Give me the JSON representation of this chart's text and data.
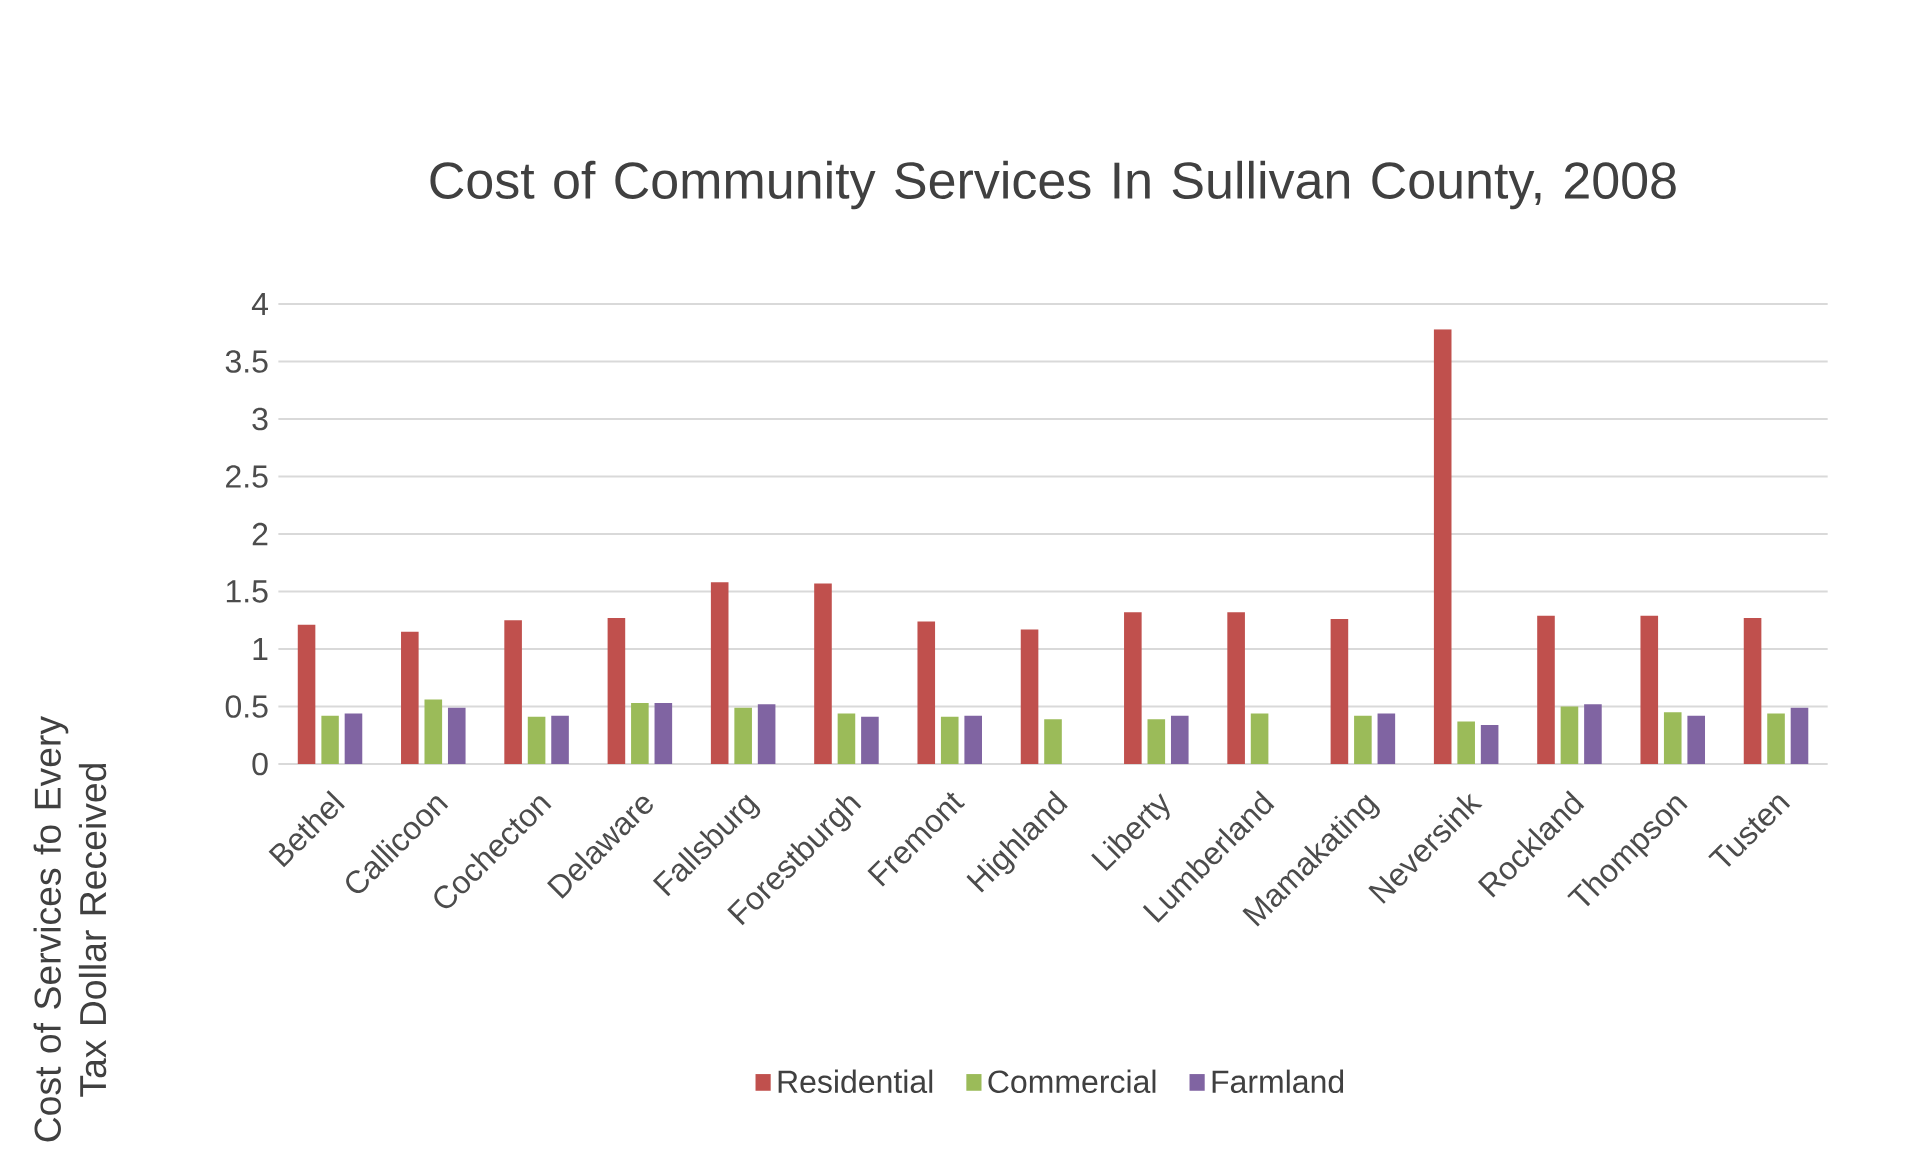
{
  "chart_data": {
    "type": "bar",
    "title": "Cost of Community Services In Sullivan County, 2008",
    "ylabel": "Cost of Services fo Every Tax Dollar Received",
    "categories": [
      "Bethel",
      "Callicoon",
      "Cochecton",
      "Delaware",
      "Fallsburg",
      "Forestburgh",
      "Fremont",
      "Highland",
      "Liberty",
      "Lumberland",
      "Mamakating",
      "Neversink",
      "Rockland",
      "Thompson",
      "Tusten"
    ],
    "series": [
      {
        "name": "Residential",
        "color": "#c0504d",
        "values": [
          1.21,
          1.15,
          1.25,
          1.27,
          1.58,
          1.57,
          1.24,
          1.17,
          1.32,
          1.32,
          1.26,
          3.78,
          1.29,
          1.29,
          1.27
        ]
      },
      {
        "name": "Commercial",
        "color": "#9bbb59",
        "values": [
          0.42,
          0.56,
          0.41,
          0.53,
          0.49,
          0.44,
          0.41,
          0.39,
          0.39,
          0.44,
          0.42,
          0.37,
          0.5,
          0.45,
          0.44
        ]
      },
      {
        "name": "Farmland",
        "color": "#8064a2",
        "values": [
          0.44,
          0.49,
          0.42,
          0.53,
          0.52,
          0.41,
          0.42,
          null,
          0.42,
          null,
          0.44,
          0.34,
          0.52,
          0.42,
          0.49
        ]
      }
    ],
    "ylim": [
      0,
      4
    ],
    "yticks": [
      0,
      0.5,
      1,
      1.5,
      2,
      2.5,
      3,
      3.5,
      4
    ],
    "grid": "y",
    "legend": "bottom"
  }
}
